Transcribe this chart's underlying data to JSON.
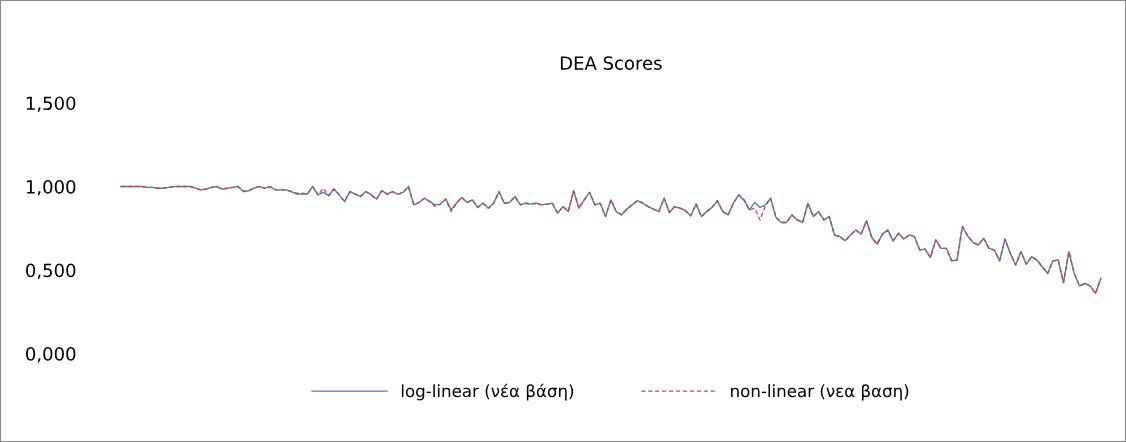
{
  "chart_data": {
    "type": "line",
    "title": "DEA Scores",
    "categories": [
      null,
      null,
      null,
      null,
      null,
      null,
      null,
      null,
      null,
      null,
      null,
      null,
      null,
      null,
      null,
      null,
      null,
      null,
      null,
      null,
      null,
      null,
      null,
      null,
      null,
      null,
      null,
      null,
      null,
      null,
      null,
      null,
      null,
      null,
      null,
      null,
      null,
      null,
      null,
      null,
      null,
      null,
      null,
      null,
      null,
      null,
      null,
      null,
      null,
      null,
      null,
      null,
      null,
      null,
      null,
      null,
      null,
      null,
      null,
      null,
      null,
      null,
      null,
      null,
      null,
      null,
      null,
      null,
      null,
      null,
      null,
      null,
      null,
      null,
      null,
      null,
      null,
      null,
      null,
      null,
      null,
      null,
      null,
      null,
      null,
      null,
      null,
      null,
      null,
      null,
      null,
      null,
      null,
      null,
      null,
      null,
      null,
      null,
      null,
      null,
      null,
      null,
      null,
      null,
      null,
      null,
      null,
      null,
      null,
      null,
      null,
      null,
      null,
      null,
      null,
      null,
      null,
      null,
      null,
      null,
      null,
      null,
      null,
      null,
      null,
      null,
      null,
      null,
      null,
      null,
      null,
      null,
      null,
      null,
      null,
      null,
      null,
      null,
      null,
      null,
      null,
      null,
      null,
      null,
      null,
      null,
      null,
      null,
      null,
      null,
      null,
      null,
      null,
      null,
      null,
      null,
      null,
      null,
      null,
      null,
      null,
      null,
      null,
      null,
      null,
      null,
      null,
      null,
      null,
      null,
      null,
      null,
      null,
      null,
      null,
      null,
      null,
      null,
      null,
      null,
      null,
      null,
      null,
      null,
      null
    ],
    "series": [
      {
        "name": "log-linear (νέα βάση)",
        "color": "#4a7ebb",
        "line_style": "solid",
        "values": [
          1.0,
          1.0,
          1.0,
          1.0,
          1.0,
          0.995,
          0.995,
          0.99,
          0.99,
          0.995,
          1.0,
          1.0,
          1.0,
          1.0,
          0.99,
          0.98,
          0.985,
          0.995,
          1.0,
          0.985,
          0.99,
          0.995,
          1.0,
          0.97,
          0.975,
          0.99,
          1.0,
          0.99,
          1.0,
          0.98,
          0.98,
          0.98,
          0.97,
          0.955,
          0.955,
          0.955,
          1.0,
          0.95,
          0.965,
          0.945,
          0.985,
          0.95,
          0.91,
          0.97,
          0.955,
          0.94,
          0.97,
          0.95,
          0.925,
          0.975,
          0.955,
          0.97,
          0.955,
          0.965,
          1.0,
          0.89,
          0.905,
          0.93,
          0.91,
          0.89,
          0.895,
          0.925,
          0.86,
          0.9,
          0.935,
          0.905,
          0.92,
          0.875,
          0.9,
          0.87,
          0.9,
          0.97,
          0.9,
          0.905,
          0.94,
          0.89,
          0.9,
          0.895,
          0.9,
          0.89,
          0.895,
          0.9,
          0.84,
          0.88,
          0.85,
          0.975,
          0.87,
          0.92,
          0.965,
          0.89,
          0.9,
          0.82,
          0.92,
          0.85,
          0.83,
          0.865,
          0.89,
          0.915,
          0.9,
          0.88,
          0.865,
          0.85,
          0.93,
          0.845,
          0.88,
          0.87,
          0.855,
          0.825,
          0.895,
          0.82,
          0.85,
          0.875,
          0.915,
          0.85,
          0.83,
          0.9,
          0.95,
          0.92,
          0.86,
          0.905,
          0.875,
          0.89,
          0.93,
          0.815,
          0.785,
          0.785,
          0.83,
          0.8,
          0.785,
          0.9,
          0.82,
          0.85,
          0.8,
          0.82,
          0.71,
          0.7,
          0.675,
          0.71,
          0.74,
          0.715,
          0.795,
          0.695,
          0.655,
          0.715,
          0.74,
          0.675,
          0.72,
          0.685,
          0.71,
          0.7,
          0.62,
          0.625,
          0.575,
          0.68,
          0.63,
          0.63,
          0.555,
          0.56,
          0.76,
          0.705,
          0.665,
          0.65,
          0.69,
          0.63,
          0.62,
          0.555,
          0.685,
          0.6,
          0.53,
          0.61,
          0.535,
          0.58,
          0.56,
          0.52,
          0.48,
          0.555,
          0.56,
          0.425,
          0.61,
          0.48,
          0.405,
          0.42,
          0.405,
          0.36,
          0.45
        ]
      },
      {
        "name": "non-linear (νεα βαση)",
        "color": "#be4b48",
        "line_style": "dashed",
        "values": [
          1.0,
          1.0,
          1.0,
          1.0,
          1.0,
          0.995,
          0.995,
          0.99,
          0.99,
          0.995,
          1.0,
          1.0,
          1.0,
          1.0,
          0.99,
          0.98,
          0.985,
          0.995,
          1.0,
          0.985,
          0.99,
          0.995,
          1.0,
          0.97,
          0.975,
          0.99,
          1.0,
          0.99,
          1.0,
          0.98,
          0.98,
          0.98,
          0.97,
          0.96,
          0.96,
          0.955,
          1.0,
          0.95,
          0.99,
          0.945,
          0.985,
          0.95,
          0.91,
          0.97,
          0.955,
          0.94,
          0.97,
          0.95,
          0.925,
          0.975,
          0.955,
          0.97,
          0.955,
          0.965,
          1.0,
          0.89,
          0.905,
          0.93,
          0.91,
          0.88,
          0.895,
          0.925,
          0.85,
          0.9,
          0.935,
          0.905,
          0.92,
          0.875,
          0.9,
          0.87,
          0.9,
          0.97,
          0.9,
          0.905,
          0.94,
          0.89,
          0.9,
          0.895,
          0.9,
          0.89,
          0.895,
          0.9,
          0.84,
          0.88,
          0.85,
          0.975,
          0.87,
          0.92,
          0.965,
          0.89,
          0.9,
          0.82,
          0.92,
          0.85,
          0.83,
          0.865,
          0.89,
          0.915,
          0.9,
          0.88,
          0.865,
          0.85,
          0.93,
          0.845,
          0.88,
          0.87,
          0.855,
          0.825,
          0.895,
          0.82,
          0.85,
          0.875,
          0.915,
          0.85,
          0.83,
          0.9,
          0.95,
          0.92,
          0.86,
          0.87,
          0.8,
          0.885,
          0.93,
          0.815,
          0.785,
          0.785,
          0.83,
          0.8,
          0.785,
          0.9,
          0.82,
          0.85,
          0.8,
          0.82,
          0.71,
          0.7,
          0.675,
          0.71,
          0.74,
          0.715,
          0.795,
          0.695,
          0.655,
          0.715,
          0.74,
          0.675,
          0.72,
          0.685,
          0.71,
          0.7,
          0.62,
          0.625,
          0.575,
          0.68,
          0.63,
          0.63,
          0.555,
          0.56,
          0.76,
          0.705,
          0.665,
          0.65,
          0.69,
          0.63,
          0.62,
          0.555,
          0.685,
          0.6,
          0.53,
          0.61,
          0.535,
          0.58,
          0.56,
          0.52,
          0.48,
          0.555,
          0.56,
          0.425,
          0.61,
          0.48,
          0.405,
          0.42,
          0.405,
          0.36,
          0.45
        ]
      }
    ],
    "ylim": [
      0,
      1.5
    ],
    "yticks": [
      {
        "value": 0,
        "label": "0,000"
      },
      {
        "value": 0.5,
        "label": "0,500"
      },
      {
        "value": 1.0,
        "label": "1,000"
      },
      {
        "value": 1.5,
        "label": "1,500"
      }
    ],
    "grid": false,
    "legend": "bottom",
    "tick_labels": "y"
  }
}
